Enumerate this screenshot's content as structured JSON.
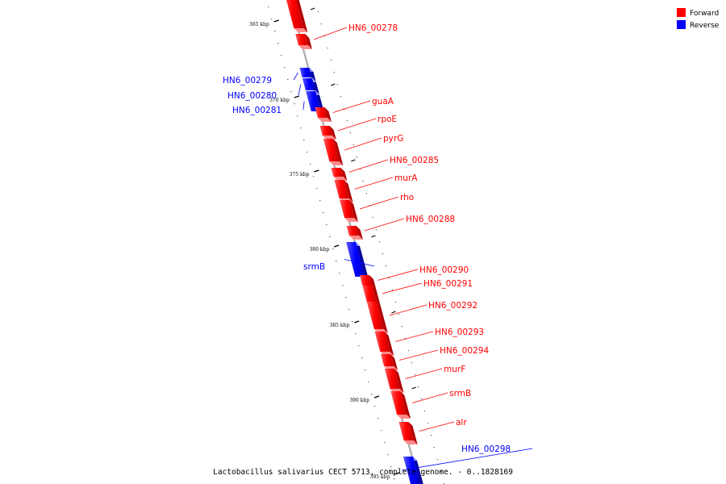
{
  "colors": {
    "forward": "#ff0000",
    "reverse": "#0000ff",
    "axis": "#888888"
  },
  "legend": [
    {
      "label": "Forward",
      "color": "#ff0000"
    },
    {
      "label": "Reverse",
      "color": "#0000ff"
    }
  ],
  "caption": "Lactobacillus salivarius CECT 5713, complete genome. - 0..1828169",
  "ticks": [
    "365 kbp",
    "370 kbp",
    "375 kbp",
    "380 kbp",
    "385 kbp",
    "390 kbp",
    "395 kbp"
  ],
  "genes": [
    {
      "name": "",
      "strand": "forward"
    },
    {
      "name": "HN6_00278",
      "strand": "forward"
    },
    {
      "name": "HN6_00279",
      "strand": "reverse"
    },
    {
      "name": "HN6_00280",
      "strand": "reverse"
    },
    {
      "name": "HN6_00281",
      "strand": "reverse"
    },
    {
      "name": "guaA",
      "strand": "forward"
    },
    {
      "name": "rpoE",
      "strand": "forward"
    },
    {
      "name": "pyrG",
      "strand": "forward"
    },
    {
      "name": "HN6_00285",
      "strand": "forward"
    },
    {
      "name": "murA",
      "strand": "forward"
    },
    {
      "name": "rho",
      "strand": "forward"
    },
    {
      "name": "HN6_00288",
      "strand": "forward"
    },
    {
      "name": "srmB",
      "strand": "reverse"
    },
    {
      "name": "HN6_00290",
      "strand": "forward"
    },
    {
      "name": "HN6_00291",
      "strand": "forward"
    },
    {
      "name": "HN6_00292",
      "strand": "forward"
    },
    {
      "name": "HN6_00293",
      "strand": "forward"
    },
    {
      "name": "HN6_00294",
      "strand": "forward"
    },
    {
      "name": "murF",
      "strand": "forward"
    },
    {
      "name": "srmB",
      "strand": "forward"
    },
    {
      "name": "alr",
      "strand": "forward"
    },
    {
      "name": "HN6_00298",
      "strand": "reverse"
    }
  ]
}
